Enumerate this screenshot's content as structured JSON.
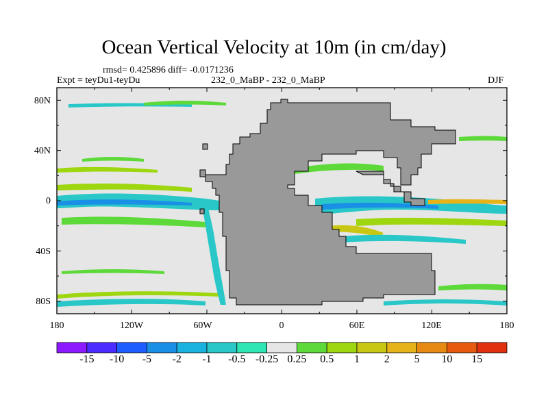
{
  "title": "Ocean Vertical Velocity at 10m (in cm/day)",
  "stats": "rmsd= 0.425896 diff= -0.0171236",
  "experiment": "Expt = teyDu1-teyDu",
  "case_label": "232_0_MaBP - 232_0_MaBP",
  "season": "DJF",
  "chart_data": {
    "type": "heatmap",
    "projection": "cylindrical-equidistant",
    "x_range_deg": [
      -180,
      180
    ],
    "y_range_deg": [
      -90,
      90
    ],
    "lat_ticks": [
      "80N",
      "40N",
      "0",
      "40S",
      "80S"
    ],
    "lon_ticks": [
      "180",
      "120W",
      "60W",
      "0",
      "60E",
      "120E",
      "180"
    ],
    "colorbar_labels": [
      "-15",
      "-10",
      "-5",
      "-2",
      "-1",
      "-0.5",
      "-0.25",
      "0.25",
      "0.5",
      "1",
      "2",
      "5",
      "10",
      "15"
    ],
    "colorbar_colors": [
      "#8c19ff",
      "#4b2bff",
      "#1e5dff",
      "#1a8fe6",
      "#1ab3e0",
      "#29c7c7",
      "#2ee6b3",
      "#e6e6e6",
      "#5ed93a",
      "#9ed60f",
      "#c8c814",
      "#e6b419",
      "#e68a14",
      "#e65a0f",
      "#e03010"
    ],
    "land_color": "#999999",
    "ocean_background": "#e6e6e6"
  }
}
